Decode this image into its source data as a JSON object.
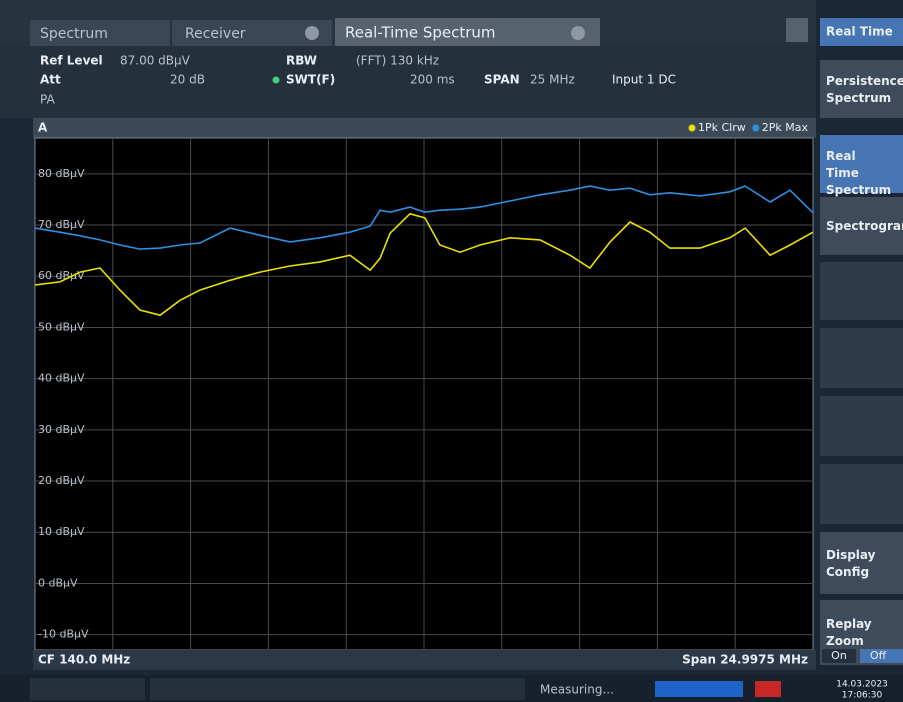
{
  "tabs": [
    "Spectrum",
    "Receiver",
    "Real-Time Spectrum"
  ],
  "info": {
    "ref_level_label": "Ref Level",
    "ref_level": "87.00 dBµV",
    "att_label": "Att",
    "att": "20 dB",
    "pa": "PA",
    "rbw_label": "RBW",
    "rbw": "(FFT) 130 kHz",
    "swt_label": "SWT(F)",
    "swt": "200 ms",
    "span_label": "SPAN",
    "span": "25 MHz",
    "input": "Input 1 DC"
  },
  "chart_header": "A",
  "footer": {
    "center": "CF 140.0 MHz",
    "span": "Span 24.9975 MHz"
  },
  "softkeys": [
    "Real Time",
    "Persistence Spectrum",
    "Real Time Spectrum",
    "Spectrogram",
    "Display Config",
    "Replay Zoom"
  ],
  "toggle": [
    "On",
    "Off"
  ],
  "status": {
    "state": "Measuring...",
    "date": "14.03.2023",
    "time": "17:06:30"
  },
  "chart_data": {
    "type": "line",
    "x": [
      127.5,
      128.3,
      128.95,
      129.59,
      130.23,
      130.87,
      131.52,
      132.16,
      132.8,
      133.77,
      134.73,
      135.69,
      136.66,
      137.62,
      138.27,
      138.59,
      138.91,
      139.55,
      140.03,
      140.51,
      141.16,
      141.8,
      142.76,
      143.73,
      144.69,
      145.33,
      145.98,
      146.62,
      147.26,
      147.9,
      148.87,
      149.83,
      150.32,
      151.12,
      151.76,
      152.5
    ],
    "xlim": [
      127.5,
      152.5
    ],
    "ylim": [
      -13,
      87
    ],
    "yticks": [
      {
        "value": 80,
        "label": "80 dBµV"
      },
      {
        "value": 70,
        "label": "70 dBµV"
      },
      {
        "value": 60,
        "label": "60 dBµV"
      },
      {
        "value": 50,
        "label": "50 dBµV"
      },
      {
        "value": 40,
        "label": "40 dBµV"
      },
      {
        "value": 30,
        "label": "30 dBµV"
      },
      {
        "value": 20,
        "label": "20 dBµV"
      },
      {
        "value": 10,
        "label": "10 dBµV"
      },
      {
        "value": 0,
        "label": "0 dBµV"
      },
      {
        "value": -10,
        "label": "-10 dBµV"
      }
    ],
    "grid": true,
    "legend": "top-right",
    "series": [
      {
        "name": "1Pk Clrw",
        "color": "#e8e000",
        "values": [
          58.3,
          58.9,
          60.8,
          61.6,
          57.3,
          53.4,
          52.4,
          55.3,
          57.3,
          59.2,
          60.8,
          62.0,
          62.8,
          64.1,
          61.2,
          63.5,
          68.4,
          72.2,
          71.4,
          66.1,
          64.7,
          66.1,
          67.5,
          67.1,
          64.1,
          61.6,
          66.7,
          70.6,
          68.6,
          65.5,
          65.5,
          67.5,
          69.4,
          64.1,
          66.1,
          68.6
        ]
      },
      {
        "name": "2Pk Max",
        "color": "#2f8fe0",
        "values": [
          69.4,
          68.6,
          67.9,
          67.1,
          66.1,
          65.3,
          65.5,
          66.1,
          66.5,
          69.4,
          68.0,
          66.7,
          67.5,
          68.6,
          69.8,
          72.9,
          72.5,
          73.5,
          72.5,
          72.9,
          73.1,
          73.5,
          74.7,
          75.9,
          76.8,
          77.6,
          76.8,
          77.2,
          75.9,
          76.3,
          75.7,
          76.5,
          77.6,
          74.5,
          76.8,
          72.4
        ]
      }
    ]
  }
}
